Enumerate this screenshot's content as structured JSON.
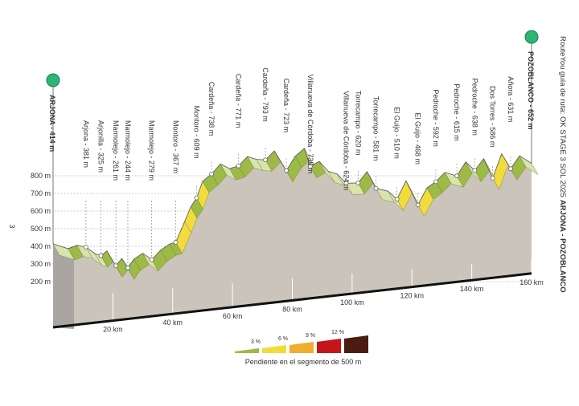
{
  "chart_data": {
    "type": "elevation-profile",
    "title": "RouteYou guía de ruta: OK STAGE 3 SOL 2025",
    "title_bold": "ARJONA - POZOBLANCO",
    "page_number": "3",
    "start_label": "ARJONA - 414 m",
    "end_label": "POZOBLANCO - 652 m",
    "legend_title": "Pendiente en el segmento de 500 m",
    "xlim": [
      0,
      160
    ],
    "ylim": [
      200,
      800
    ],
    "yticks": [
      {
        "value": 200,
        "label": "200 m"
      },
      {
        "value": 300,
        "label": "300 m"
      },
      {
        "value": 400,
        "label": "400 m"
      },
      {
        "value": 500,
        "label": "500 m"
      },
      {
        "value": 600,
        "label": "600 m"
      },
      {
        "value": 700,
        "label": "700 m"
      },
      {
        "value": 800,
        "label": "800 m"
      }
    ],
    "xticks": [
      {
        "value": 20,
        "label": "20 km"
      },
      {
        "value": 40,
        "label": "40 km"
      },
      {
        "value": 60,
        "label": "60 km"
      },
      {
        "value": 80,
        "label": "80 km"
      },
      {
        "value": 100,
        "label": "100 km"
      },
      {
        "value": 120,
        "label": "120 km"
      },
      {
        "value": 140,
        "label": "140 km"
      },
      {
        "value": 160,
        "label": "160 km"
      }
    ],
    "grid": true,
    "slope_thresholds": [
      {
        "value": 3,
        "label": "3 %"
      },
      {
        "value": 6,
        "label": "6 %"
      },
      {
        "value": 9,
        "label": "9 %"
      },
      {
        "value": 12,
        "label": "12 %"
      }
    ],
    "slope_colors": [
      "#9cba45",
      "#f2dc3c",
      "#f2ad2e",
      "#c4161c",
      "#4a1c12"
    ],
    "descent_color": "#d9e4ad",
    "face_color": "#cbc4ba",
    "marker_color": "#2bb673",
    "profile": {
      "x": [
        0,
        5,
        8,
        11,
        14,
        16,
        18,
        21,
        23,
        25,
        27,
        30,
        33,
        36,
        39,
        41,
        44,
        46,
        48,
        50,
        53,
        56,
        59,
        62,
        65,
        68,
        71,
        74,
        78,
        81,
        84,
        86,
        89,
        92,
        95,
        98,
        102,
        105,
        108,
        112,
        115,
        118,
        122,
        125,
        128,
        131,
        135,
        138,
        141,
        144,
        147,
        150,
        153,
        156,
        160
      ],
      "values": [
        414,
        380,
        395,
        381,
        340,
        325,
        350,
        261,
        300,
        244,
        290,
        320,
        279,
        330,
        360,
        367,
        480,
        560,
        609,
        700,
        738,
        790,
        760,
        771,
        820,
        800,
        793,
        840,
        723,
        800,
        840,
        735,
        760,
        700,
        680,
        624,
        620,
        680,
        581,
        560,
        510,
        610,
        468,
        560,
        592,
        640,
        615,
        690,
        638,
        700,
        586,
        720,
        631,
        700,
        652
      ]
    },
    "waypoints": {
      "x": [
        11,
        16,
        21,
        25,
        33,
        41,
        48,
        53,
        62,
        71,
        78,
        86,
        98,
        102,
        108,
        115,
        122,
        128,
        135,
        141,
        147,
        153
      ],
      "values": [
        381,
        325,
        261,
        244,
        279,
        367,
        609,
        738,
        771,
        793,
        723,
        735,
        624,
        620,
        581,
        510,
        468,
        592,
        615,
        638,
        586,
        631
      ],
      "value_labels": [
        "Arjona - 381 m",
        "Arjonilla - 325 m",
        "Marmolejo - 261 m",
        "Marmolejo - 244 m",
        "Marmolejo - 279 m",
        "Montoro - 367 m",
        "Montoro - 609 m",
        "Cardeña - 738 m",
        "Cardeña - 771 m",
        "Cardeña - 793 m",
        "Cardeña - 723 m",
        "Villanueva de Córdoba - 735 m",
        "Villanueva de Córdoba - 624 m",
        "Torrecampo - 620 m",
        "Torrecampo - 581 m",
        "El Guijo - 510 m",
        "El Guijo - 468 m",
        "Pedroche - 592 m",
        "Pedroche - 615 m",
        "Pedroche - 638 m",
        "Dos Torres - 586 m",
        "Añora - 631 m"
      ]
    }
  }
}
